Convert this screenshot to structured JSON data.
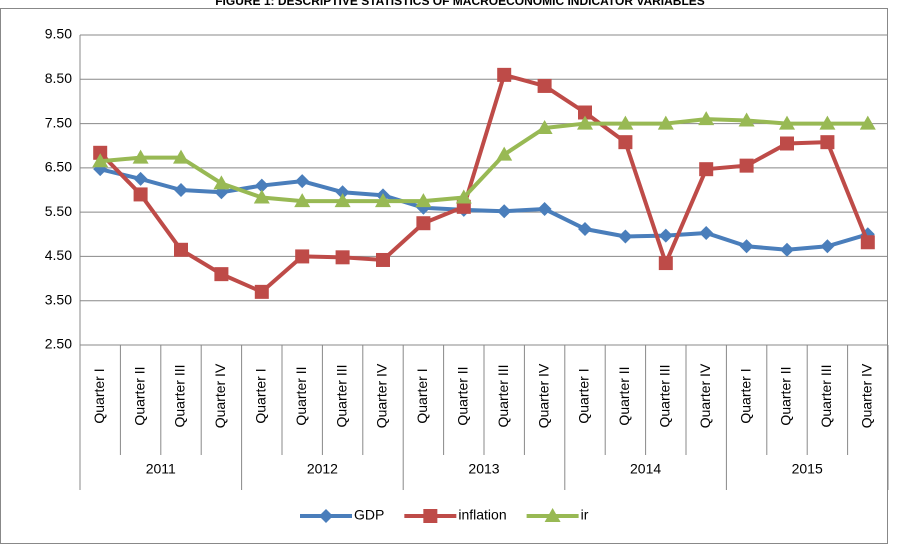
{
  "chart_data": {
    "type": "line",
    "title": "FIGURE 1: DESCRIPTIVE STATISTICS OF MACROECONOMIC INDICATOR VARIABLES",
    "categories": [
      "Quarter I",
      "Quarter II",
      "Quarter III",
      "Quarter IV",
      "Quarter I",
      "Quarter II",
      "Quarter III",
      "Quarter IV",
      "Quarter I",
      "Quarter II",
      "Quarter III",
      "Quarter IV",
      "Quarter I",
      "Quarter II",
      "Quarter III",
      "Quarter IV",
      "Quarter I",
      "Quarter II",
      "Quarter III",
      "Quarter IV"
    ],
    "groups": [
      "2011",
      "2012",
      "2013",
      "2014",
      "2015"
    ],
    "series": [
      {
        "name": "GDP",
        "color": "#4a7ebb",
        "marker": "diamond",
        "values": [
          6.47,
          6.25,
          6.0,
          5.95,
          6.1,
          6.2,
          5.95,
          5.88,
          5.6,
          5.55,
          5.52,
          5.57,
          5.12,
          4.95,
          4.97,
          5.03,
          4.73,
          4.65,
          4.73,
          5.0
        ]
      },
      {
        "name": "inflation",
        "color": "#be4b48",
        "marker": "square",
        "values": [
          6.84,
          5.9,
          4.65,
          4.1,
          3.7,
          4.5,
          4.48,
          4.42,
          5.25,
          5.62,
          8.6,
          8.35,
          7.75,
          7.08,
          4.35,
          6.47,
          6.55,
          7.05,
          7.08,
          4.82
        ]
      },
      {
        "name": "ir",
        "color": "#98b954",
        "marker": "triangle",
        "values": [
          6.65,
          6.73,
          6.73,
          6.15,
          5.83,
          5.75,
          5.75,
          5.75,
          5.75,
          5.83,
          6.8,
          7.4,
          7.5,
          7.5,
          7.5,
          7.6,
          7.57,
          7.5,
          7.5,
          7.5
        ]
      }
    ],
    "ylim": [
      2.5,
      9.5
    ],
    "yticks": [
      {
        "value": 2.5,
        "label": "2.50"
      },
      {
        "value": 3.5,
        "label": "3.50"
      },
      {
        "value": 4.5,
        "label": "4.50"
      },
      {
        "value": 5.5,
        "label": "5.50"
      },
      {
        "value": 6.5,
        "label": "6.50"
      },
      {
        "value": 7.5,
        "label": "7.50"
      },
      {
        "value": 8.5,
        "label": "8.50"
      },
      {
        "value": 9.5,
        "label": "9.50"
      }
    ],
    "grid": true,
    "legend": "bottom"
  }
}
